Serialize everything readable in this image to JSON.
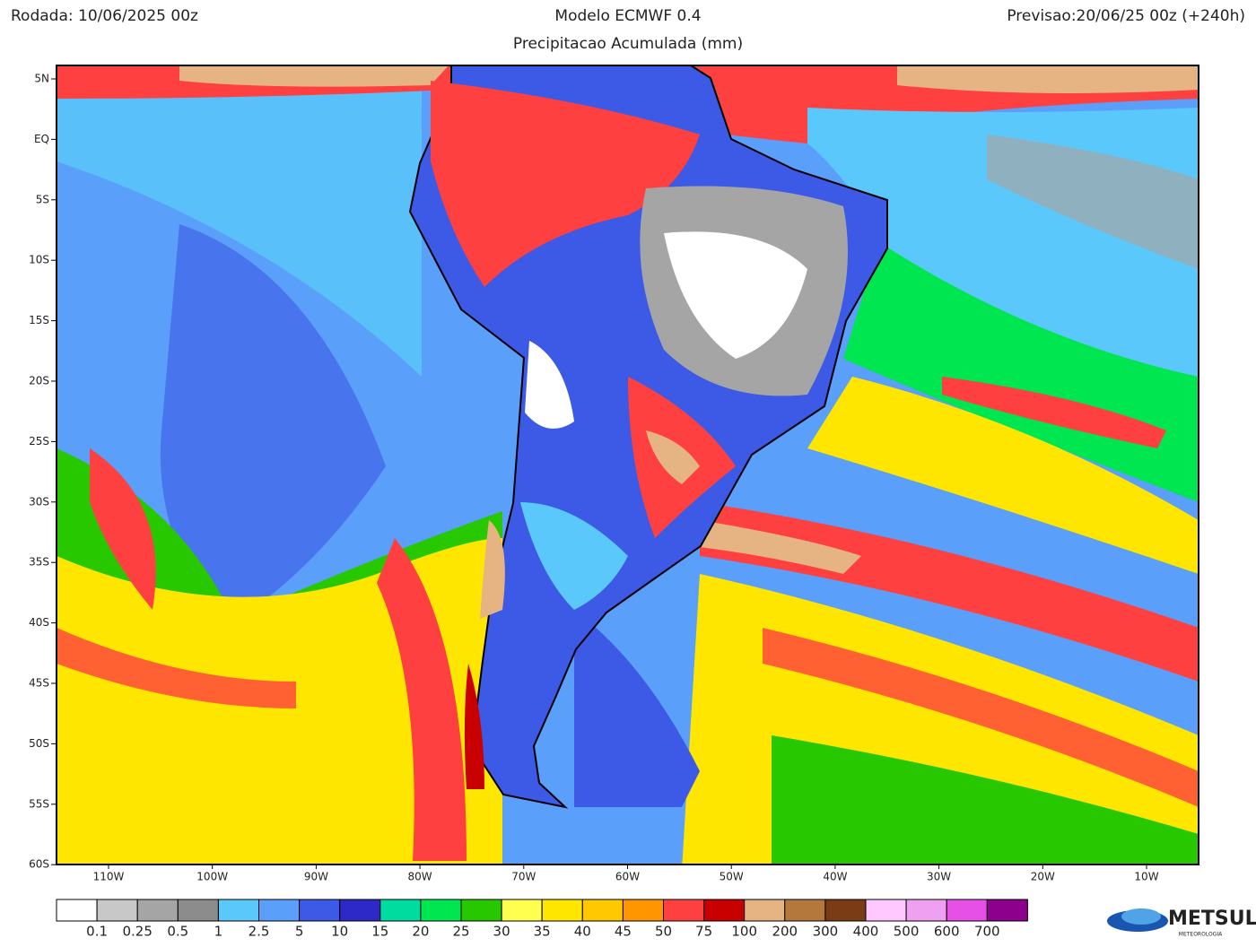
{
  "header": {
    "left": "Rodada: 10/06/2025 00z",
    "center": "Modelo ECMWF 0.4",
    "right": "Previsao:20/06/25 00z (+240h)",
    "subtitle": "Precipitacao Acumulada (mm)"
  },
  "map": {
    "lat_labels": [
      "5N",
      "EQ",
      "5S",
      "10S",
      "15S",
      "20S",
      "25S",
      "30S",
      "35S",
      "40S",
      "45S",
      "50S",
      "55S",
      "60S"
    ],
    "lon_labels": [
      "110W",
      "100W",
      "90W",
      "80W",
      "70W",
      "60W",
      "50W",
      "40W",
      "30W",
      "20W",
      "10W"
    ]
  },
  "legend": {
    "levels": [
      "0.1",
      "0.25",
      "0.5",
      "1",
      "2.5",
      "5",
      "10",
      "15",
      "20",
      "25",
      "30",
      "35",
      "40",
      "45",
      "50",
      "75",
      "100",
      "200",
      "300",
      "400",
      "500",
      "600",
      "700"
    ],
    "colors": [
      "#ffffff",
      "#c8c8c8",
      "#a5a5a5",
      "#8c8c8c",
      "#5ac8fa",
      "#5a9ffa",
      "#3c5ae6",
      "#2d28c8",
      "#00dca0",
      "#00e650",
      "#28c800",
      "#ffff50",
      "#ffe600",
      "#ffc800",
      "#ff9600",
      "#ff4040",
      "#c80000",
      "#e6b482",
      "#b4783c",
      "#7a3c14",
      "#ffc8ff",
      "#f0a0f0",
      "#e650e6",
      "#8c008c"
    ]
  },
  "logo": {
    "name": "METSUL",
    "tagline": "METEOROLOGIA"
  }
}
